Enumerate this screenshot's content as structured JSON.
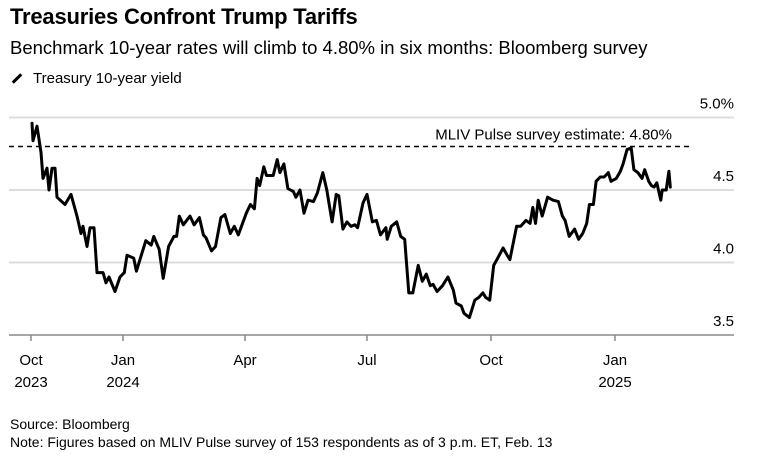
{
  "header": {
    "title": "Treasuries Confront Trump Tariffs",
    "subtitle": "Benchmark 10-year rates will climb to 4.80% in six months: Bloomberg survey"
  },
  "footer": {
    "source": "Source: Bloomberg",
    "note": "Note: Figures based on MLIV Pulse survey of 153 respondents as of 3 p.m. ET, Feb. 13"
  },
  "chart_data": {
    "type": "line",
    "title": "Treasuries Confront Trump Tariffs",
    "legend": {
      "position": "top-left",
      "entries": [
        "Treasury 10-year yield"
      ]
    },
    "colors": {
      "line": "#000000",
      "grid": "#dddddd",
      "axis": "#888888"
    },
    "grid": true,
    "y_axis": {
      "position": "right",
      "range": [
        3.5,
        5.0
      ],
      "ticks": [
        {
          "value": 5.0,
          "label": "5.0%"
        },
        {
          "value": 4.5,
          "label": "4.5"
        },
        {
          "value": 4.0,
          "label": "4.0"
        },
        {
          "value": 3.5,
          "label": "3.5"
        }
      ]
    },
    "x_axis": {
      "ticks": [
        {
          "date": "2023-10-01",
          "label": "Oct",
          "year": "2023"
        },
        {
          "date": "2024-01-01",
          "label": "Jan",
          "year": "2024"
        },
        {
          "date": "2024-04-01",
          "label": "Apr",
          "year": ""
        },
        {
          "date": "2024-07-01",
          "label": "Jul",
          "year": ""
        },
        {
          "date": "2024-10-01",
          "label": "Oct",
          "year": ""
        },
        {
          "date": "2025-01-01",
          "label": "Jan",
          "year": "2025"
        }
      ]
    },
    "reference_line": {
      "value": 4.8,
      "style": "dashed",
      "label": "MLIV Pulse survey estimate: 4.80%"
    },
    "series": [
      {
        "name": "Treasury 10-year yield",
        "points": [
          [
            "2023-10-02",
            4.96
          ],
          [
            "2023-10-03",
            4.84
          ],
          [
            "2023-10-07",
            4.94
          ],
          [
            "2023-10-11",
            4.76
          ],
          [
            "2023-10-13",
            4.58
          ],
          [
            "2023-10-17",
            4.65
          ],
          [
            "2023-10-19",
            4.5
          ],
          [
            "2023-10-22",
            4.65
          ],
          [
            "2023-10-25",
            4.65
          ],
          [
            "2023-10-27",
            4.45
          ],
          [
            "2023-11-04",
            4.4
          ],
          [
            "2023-11-10",
            4.47
          ],
          [
            "2023-11-16",
            4.32
          ],
          [
            "2023-11-20",
            4.2
          ],
          [
            "2023-11-22",
            4.25
          ],
          [
            "2023-11-26",
            4.11
          ],
          [
            "2023-11-29",
            4.24
          ],
          [
            "2023-12-03",
            4.24
          ],
          [
            "2023-12-06",
            3.93
          ],
          [
            "2023-12-12",
            3.93
          ],
          [
            "2023-12-15",
            3.86
          ],
          [
            "2023-12-18",
            3.9
          ],
          [
            "2023-12-24",
            3.8
          ],
          [
            "2023-12-29",
            3.9
          ],
          [
            "2024-01-02",
            3.93
          ],
          [
            "2024-01-04",
            4.05
          ],
          [
            "2024-01-09",
            4.03
          ],
          [
            "2024-01-11",
            3.94
          ],
          [
            "2024-01-18",
            4.15
          ],
          [
            "2024-01-22",
            4.12
          ],
          [
            "2024-01-24",
            4.18
          ],
          [
            "2024-01-28",
            4.09
          ],
          [
            "2024-01-31",
            3.89
          ],
          [
            "2024-02-04",
            4.11
          ],
          [
            "2024-02-08",
            4.18
          ],
          [
            "2024-02-10",
            4.18
          ],
          [
            "2024-02-12",
            4.32
          ],
          [
            "2024-02-15",
            4.26
          ],
          [
            "2024-02-20",
            4.32
          ],
          [
            "2024-02-23",
            4.26
          ],
          [
            "2024-02-27",
            4.31
          ],
          [
            "2024-03-01",
            4.19
          ],
          [
            "2024-03-03",
            4.17
          ],
          [
            "2024-03-07",
            4.08
          ],
          [
            "2024-03-10",
            4.11
          ],
          [
            "2024-03-14",
            4.31
          ],
          [
            "2024-03-17",
            4.33
          ],
          [
            "2024-03-21",
            4.2
          ],
          [
            "2024-03-24",
            4.25
          ],
          [
            "2024-03-27",
            4.19
          ],
          [
            "2024-04-02",
            4.34
          ],
          [
            "2024-04-05",
            4.4
          ],
          [
            "2024-04-08",
            4.37
          ],
          [
            "2024-04-10",
            4.58
          ],
          [
            "2024-04-12",
            4.53
          ],
          [
            "2024-04-15",
            4.66
          ],
          [
            "2024-04-17",
            4.6
          ],
          [
            "2024-04-22",
            4.6
          ],
          [
            "2024-04-25",
            4.71
          ],
          [
            "2024-04-27",
            4.62
          ],
          [
            "2024-04-30",
            4.68
          ],
          [
            "2024-05-03",
            4.51
          ],
          [
            "2024-05-07",
            4.49
          ],
          [
            "2024-05-09",
            4.45
          ],
          [
            "2024-05-12",
            4.5
          ],
          [
            "2024-05-15",
            4.34
          ],
          [
            "2024-05-18",
            4.43
          ],
          [
            "2024-05-22",
            4.42
          ],
          [
            "2024-05-25",
            4.48
          ],
          [
            "2024-05-29",
            4.62
          ],
          [
            "2024-06-01",
            4.5
          ],
          [
            "2024-06-05",
            4.28
          ],
          [
            "2024-06-08",
            4.47
          ],
          [
            "2024-06-10",
            4.46
          ],
          [
            "2024-06-13",
            4.23
          ],
          [
            "2024-06-16",
            4.28
          ],
          [
            "2024-06-19",
            4.25
          ],
          [
            "2024-06-22",
            4.26
          ],
          [
            "2024-06-24",
            4.24
          ],
          [
            "2024-06-28",
            4.41
          ],
          [
            "2024-07-01",
            4.47
          ],
          [
            "2024-07-05",
            4.28
          ],
          [
            "2024-07-08",
            4.29
          ],
          [
            "2024-07-11",
            4.19
          ],
          [
            "2024-07-15",
            4.24
          ],
          [
            "2024-07-16",
            4.16
          ],
          [
            "2024-07-19",
            4.25
          ],
          [
            "2024-07-23",
            4.28
          ],
          [
            "2024-07-26",
            4.18
          ],
          [
            "2024-07-29",
            4.16
          ],
          [
            "2024-08-01",
            3.79
          ],
          [
            "2024-08-04",
            3.79
          ],
          [
            "2024-08-08",
            3.98
          ],
          [
            "2024-08-11",
            3.87
          ],
          [
            "2024-08-14",
            3.92
          ],
          [
            "2024-08-17",
            3.84
          ],
          [
            "2024-08-19",
            3.85
          ],
          [
            "2024-08-22",
            3.8
          ],
          [
            "2024-08-26",
            3.84
          ],
          [
            "2024-08-30",
            3.9
          ],
          [
            "2024-09-03",
            3.81
          ],
          [
            "2024-09-05",
            3.72
          ],
          [
            "2024-09-09",
            3.7
          ],
          [
            "2024-09-11",
            3.65
          ],
          [
            "2024-09-15",
            3.62
          ],
          [
            "2024-09-19",
            3.74
          ],
          [
            "2024-09-22",
            3.76
          ],
          [
            "2024-09-25",
            3.79
          ],
          [
            "2024-09-27",
            3.76
          ],
          [
            "2024-09-30",
            3.74
          ],
          [
            "2024-10-03",
            3.98
          ],
          [
            "2024-10-06",
            4.03
          ],
          [
            "2024-10-10",
            4.1
          ],
          [
            "2024-10-13",
            4.05
          ],
          [
            "2024-10-15",
            4.02
          ],
          [
            "2024-10-20",
            4.25
          ],
          [
            "2024-10-23",
            4.25
          ],
          [
            "2024-10-27",
            4.29
          ],
          [
            "2024-10-30",
            4.27
          ],
          [
            "2024-11-01",
            4.38
          ],
          [
            "2024-11-03",
            4.27
          ],
          [
            "2024-11-05",
            4.43
          ],
          [
            "2024-11-08",
            4.32
          ],
          [
            "2024-11-12",
            4.45
          ],
          [
            "2024-11-16",
            4.43
          ],
          [
            "2024-11-20",
            4.42
          ],
          [
            "2024-11-23",
            4.32
          ],
          [
            "2024-11-25",
            4.29
          ],
          [
            "2024-11-28",
            4.18
          ],
          [
            "2024-12-02",
            4.23
          ],
          [
            "2024-12-05",
            4.16
          ],
          [
            "2024-12-08",
            4.2
          ],
          [
            "2024-12-11",
            4.27
          ],
          [
            "2024-12-13",
            4.4
          ],
          [
            "2024-12-16",
            4.4
          ],
          [
            "2024-12-18",
            4.56
          ],
          [
            "2024-12-21",
            4.59
          ],
          [
            "2024-12-24",
            4.59
          ],
          [
            "2024-12-27",
            4.62
          ],
          [
            "2024-12-29",
            4.56
          ],
          [
            "2025-01-02",
            4.58
          ],
          [
            "2025-01-05",
            4.63
          ],
          [
            "2025-01-07",
            4.68
          ],
          [
            "2025-01-10",
            4.78
          ],
          [
            "2025-01-13",
            4.79
          ],
          [
            "2025-01-15",
            4.64
          ],
          [
            "2025-01-18",
            4.62
          ],
          [
            "2025-01-21",
            4.58
          ],
          [
            "2025-01-23",
            4.64
          ],
          [
            "2025-01-26",
            4.56
          ],
          [
            "2025-01-28",
            4.53
          ],
          [
            "2025-01-30",
            4.52
          ],
          [
            "2025-02-01",
            4.55
          ],
          [
            "2025-02-04",
            4.43
          ],
          [
            "2025-02-05",
            4.5
          ],
          [
            "2025-02-08",
            4.5
          ],
          [
            "2025-02-10",
            4.63
          ],
          [
            "2025-02-11",
            4.52
          ]
        ]
      }
    ]
  }
}
